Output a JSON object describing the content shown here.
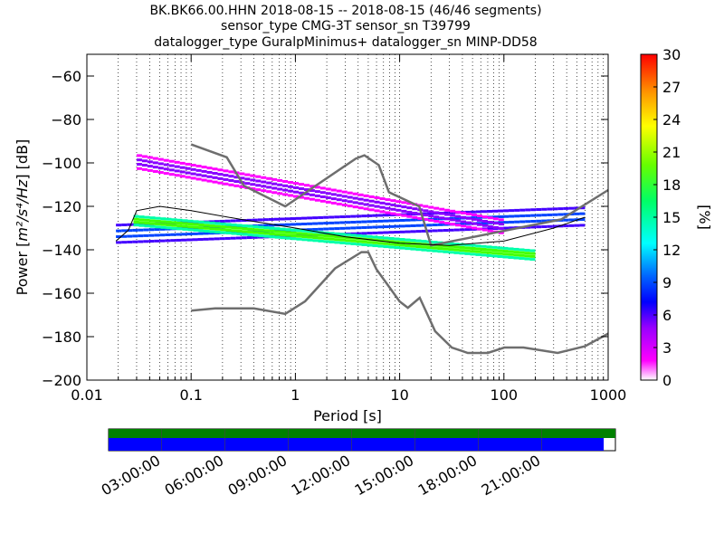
{
  "title_lines": [
    "BK.BK66.00.HHN   2018-08-15 -- 2018-08-15  (46/46 segments)",
    "sensor_type CMG-3T sensor_sn T39799",
    "datalogger_type GuralpMinimus+ datalogger_sn MINP-DD58"
  ],
  "chart_data": {
    "type": "heatmap",
    "xlabel": "Period [s]",
    "ylabel_prefix": "Power [",
    "ylabel_math": "m²/s⁴/Hz",
    "ylabel_suffix": "] [dB]",
    "x_scale": "log",
    "xlim": [
      0.01,
      1000
    ],
    "ylim": [
      -200,
      -50
    ],
    "x_tick_values": [
      0.01,
      0.1,
      1,
      10,
      100,
      1000
    ],
    "x_tick_labels": [
      "0.01",
      "0.1",
      "1",
      "10",
      "100",
      "1000"
    ],
    "y_tick_values": [
      -200,
      -180,
      -160,
      -140,
      -120,
      -100,
      -80,
      -60
    ],
    "y_tick_labels": [
      "−200",
      "−180",
      "−160",
      "−140",
      "−120",
      "−100",
      "−80",
      "−60"
    ],
    "grid": "dotted vertical lines at decade subdivisions",
    "colorbar": {
      "label": "[%]",
      "range": [
        0,
        30
      ],
      "tick_values": [
        0,
        3,
        6,
        9,
        12,
        15,
        18,
        21,
        24,
        27,
        30
      ],
      "tick_labels": [
        "0",
        "3",
        "6",
        "9",
        "12",
        "15",
        "18",
        "21",
        "24",
        "27",
        "30"
      ]
    },
    "nlnm_curve": [
      [
        0.1,
        -168
      ],
      [
        0.17,
        -167
      ],
      [
        0.4,
        -167
      ],
      [
        0.8,
        -169.5
      ],
      [
        1.24,
        -163.7
      ],
      [
        2.4,
        -148.6
      ],
      [
        4.3,
        -141.1
      ],
      [
        5.0,
        -141.1
      ],
      [
        6.0,
        -149.0
      ],
      [
        10.0,
        -163.8
      ],
      [
        12.0,
        -166.7
      ],
      [
        15.6,
        -162.1
      ],
      [
        21.9,
        -177.5
      ],
      [
        31.6,
        -185.0
      ],
      [
        45.0,
        -187.5
      ],
      [
        70.0,
        -187.5
      ],
      [
        101.0,
        -185.0
      ],
      [
        154.0,
        -185.0
      ],
      [
        328.0,
        -187.5
      ],
      [
        600.0,
        -184.4
      ],
      [
        1000.0,
        -178.6
      ]
    ],
    "nhnm_curve": [
      [
        0.1,
        -91.5
      ],
      [
        0.22,
        -97.4
      ],
      [
        0.32,
        -110.5
      ],
      [
        0.8,
        -120.0
      ],
      [
        3.8,
        -98.0
      ],
      [
        4.6,
        -96.5
      ],
      [
        6.3,
        -101.0
      ],
      [
        7.9,
        -113.5
      ],
      [
        15.4,
        -120.0
      ],
      [
        20.0,
        -138.0
      ],
      [
        354.8,
        -126.0
      ],
      [
        1000.0,
        -112.5
      ]
    ],
    "density_bands": [
      {
        "pmin": 0.019,
        "pmax": 600,
        "db_at_pmin": -133,
        "db_at_pmax": -125,
        "width_db": 8,
        "level": 7
      },
      {
        "pmin": 0.028,
        "pmax": 200,
        "db_at_pmin": -127,
        "db_at_pmax": -143,
        "width_db": 4,
        "level": 13
      },
      {
        "pmin": 0.03,
        "pmax": 100,
        "db_at_pmin": -100,
        "db_at_pmax": -130,
        "width_db": 6,
        "level": 4
      }
    ],
    "mean_curve": [
      [
        0.019,
        -136
      ],
      [
        0.025,
        -131
      ],
      [
        0.03,
        -122
      ],
      [
        0.05,
        -120
      ],
      [
        0.1,
        -122
      ],
      [
        0.3,
        -126
      ],
      [
        1,
        -130
      ],
      [
        3,
        -134
      ],
      [
        10,
        -137
      ],
      [
        30,
        -138
      ],
      [
        100,
        -136
      ],
      [
        300,
        -130
      ],
      [
        600,
        -125
      ]
    ],
    "timeline": {
      "tick_labels": [
        "03:00:00",
        "06:00:00",
        "09:00:00",
        "12:00:00",
        "15:00:00",
        "18:00:00",
        "21:00:00"
      ],
      "tick_hours": [
        3,
        6,
        9,
        12,
        15,
        18,
        21
      ],
      "span_hours": [
        0.5,
        24.5
      ],
      "data_coverage_fraction": 0.977,
      "gap_coverage_color": "#008000",
      "data_coverage_color": "#0000ff"
    }
  }
}
